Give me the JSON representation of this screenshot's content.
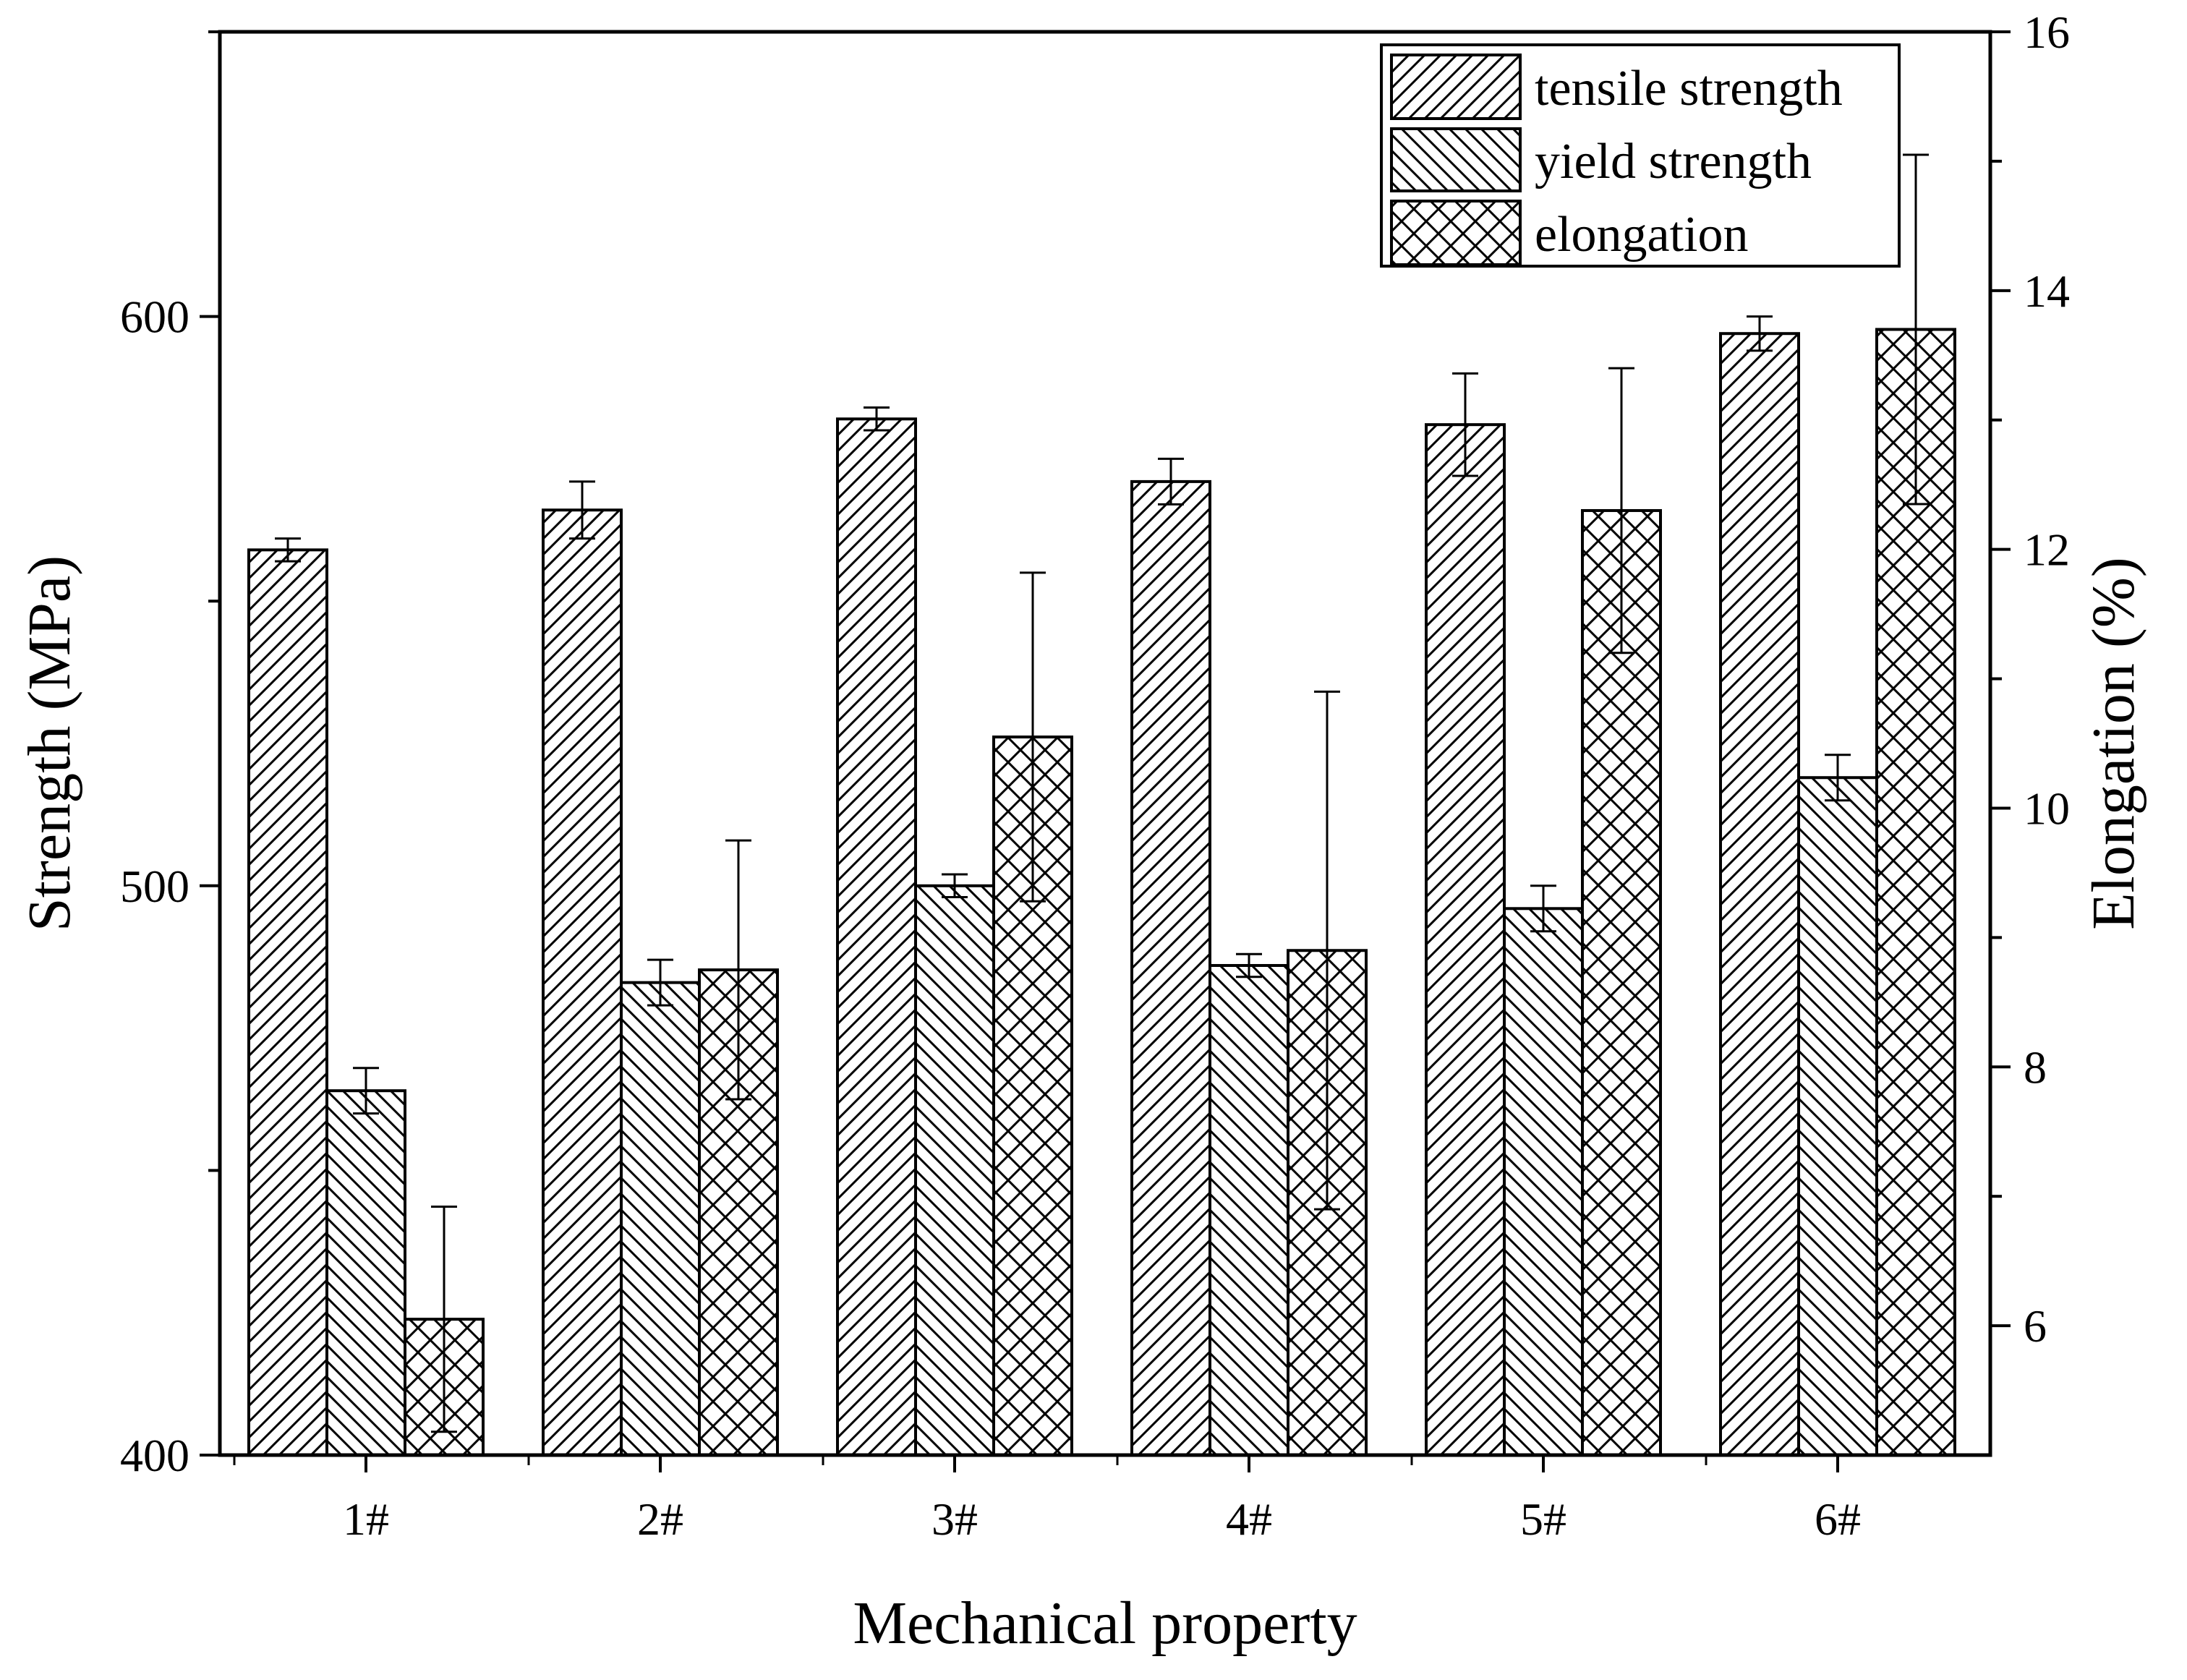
{
  "chart_data": {
    "type": "bar",
    "title": "",
    "xlabel": "Mechanical property",
    "ylabel": "Strength (MPa)",
    "y2label": "Elongation (%)",
    "categories": [
      "1#",
      "2#",
      "3#",
      "4#",
      "5#",
      "6#"
    ],
    "ylim": [
      400,
      650
    ],
    "y2lim": [
      5,
      16
    ],
    "yticks": [
      "400",
      "500",
      "600"
    ],
    "y2ticks": [
      "6",
      "8",
      "10",
      "12",
      "14",
      "16"
    ],
    "grid": false,
    "legend_position": "top-right",
    "series": [
      {
        "name": "tensile strength",
        "axis": "left",
        "pattern": "hatch-forward",
        "values": [
          559,
          566,
          582,
          571,
          581,
          597
        ],
        "errors": [
          2,
          5,
          2,
          4,
          9,
          3
        ]
      },
      {
        "name": "yield strength",
        "axis": "left",
        "pattern": "hatch-back",
        "values": [
          464,
          483,
          500,
          486,
          496,
          519
        ],
        "errors": [
          4,
          4,
          2,
          2,
          4,
          4
        ]
      },
      {
        "name": "elongation",
        "axis": "right",
        "pattern": "crosshatch",
        "values": [
          6.05,
          8.75,
          10.55,
          8.9,
          12.3,
          13.7
        ],
        "errors": [
          0.87,
          1.0,
          1.27,
          2.0,
          1.1,
          1.35
        ]
      }
    ]
  }
}
